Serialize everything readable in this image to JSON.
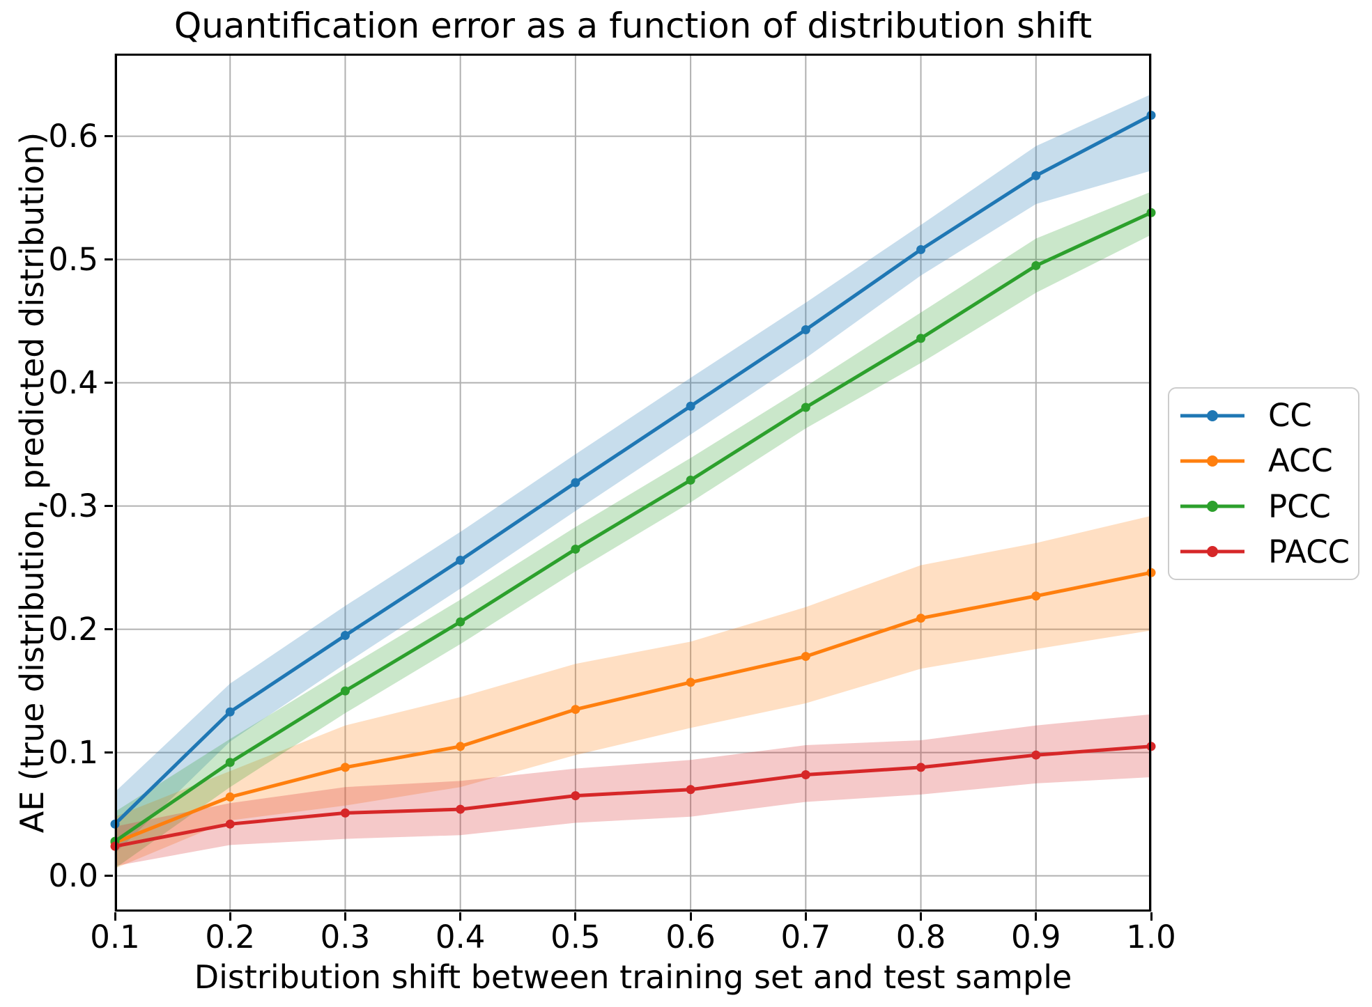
{
  "figure": {
    "title": "Quantification error as a function of distribution shift"
  },
  "chart_data": {
    "type": "line",
    "title": "Quantification error as a function of distribution shift",
    "xlabel": "Distribution shift between training set and test sample",
    "ylabel": "AE (true distribution, predicted distribution)",
    "grid": true,
    "grid_color": "#b0b0b0",
    "legend_position": "center right outside",
    "xlim": [
      0.1,
      1.0
    ],
    "ylim": [
      -0.029,
      0.667
    ],
    "xticks": {
      "values": [
        0.1,
        0.2,
        0.3,
        0.4,
        0.5,
        0.6,
        0.7,
        0.8,
        0.9,
        1.0
      ],
      "labels": [
        "0.1",
        "0.2",
        "0.3",
        "0.4",
        "0.5",
        "0.6",
        "0.7",
        "0.8",
        "0.9",
        "1.0"
      ]
    },
    "yticks": {
      "values": [
        0.0,
        0.1,
        0.2,
        0.3,
        0.4,
        0.5,
        0.6
      ],
      "labels": [
        "0.0",
        "0.1",
        "0.2",
        "0.3",
        "0.4",
        "0.5",
        "0.6"
      ]
    },
    "x": [
      0.1,
      0.2,
      0.3,
      0.4,
      0.5,
      0.6,
      0.7,
      0.8,
      0.9,
      1.0
    ],
    "band_opacity": 0.25,
    "series": [
      {
        "name": "CC",
        "color": "#1f77b4",
        "values": [
          0.042,
          0.133,
          0.195,
          0.256,
          0.319,
          0.381,
          0.443,
          0.508,
          0.568,
          0.617
        ],
        "band_upper": [
          0.068,
          0.156,
          0.219,
          0.279,
          0.342,
          0.404,
          0.465,
          0.528,
          0.592,
          0.634
        ],
        "band_lower": [
          0.018,
          0.109,
          0.172,
          0.233,
          0.296,
          0.358,
          0.42,
          0.487,
          0.545,
          0.572
        ]
      },
      {
        "name": "ACC",
        "color": "#ff7f0e",
        "values": [
          0.027,
          0.064,
          0.088,
          0.105,
          0.135,
          0.157,
          0.178,
          0.209,
          0.227,
          0.246
        ],
        "band_upper": [
          0.048,
          0.085,
          0.122,
          0.145,
          0.172,
          0.19,
          0.218,
          0.252,
          0.27,
          0.292
        ],
        "band_lower": [
          0.006,
          0.045,
          0.057,
          0.072,
          0.098,
          0.12,
          0.14,
          0.168,
          0.184,
          0.199
        ]
      },
      {
        "name": "PCC",
        "color": "#2ca02c",
        "values": [
          0.028,
          0.092,
          0.15,
          0.206,
          0.265,
          0.321,
          0.38,
          0.436,
          0.495,
          0.538
        ],
        "band_upper": [
          0.052,
          0.111,
          0.168,
          0.224,
          0.283,
          0.339,
          0.397,
          0.457,
          0.517,
          0.555
        ],
        "band_lower": [
          0.006,
          0.072,
          0.132,
          0.188,
          0.247,
          0.303,
          0.363,
          0.416,
          0.473,
          0.52
        ]
      },
      {
        "name": "PACC",
        "color": "#d62728",
        "values": [
          0.024,
          0.042,
          0.051,
          0.054,
          0.065,
          0.07,
          0.082,
          0.088,
          0.098,
          0.105
        ],
        "band_upper": [
          0.04,
          0.059,
          0.072,
          0.077,
          0.087,
          0.094,
          0.106,
          0.11,
          0.122,
          0.131
        ],
        "band_lower": [
          0.008,
          0.025,
          0.03,
          0.033,
          0.043,
          0.048,
          0.06,
          0.066,
          0.075,
          0.08
        ]
      }
    ]
  }
}
